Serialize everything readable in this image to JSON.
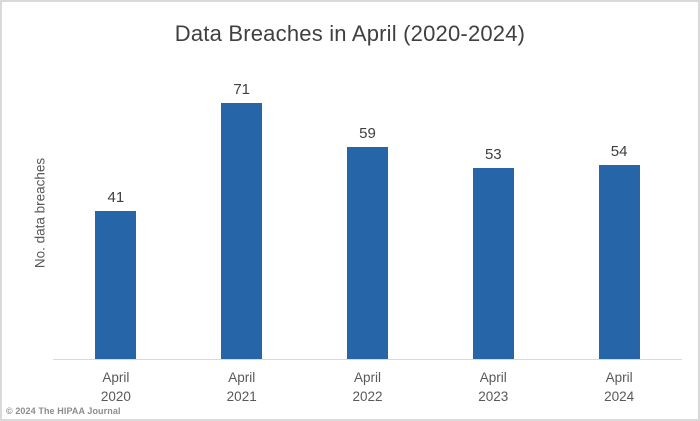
{
  "chart_data": {
    "type": "bar",
    "title": "Data Breaches in April (2020-2024)",
    "xlabel": "",
    "ylabel": "No. data breaches",
    "categories": [
      "April\n2020",
      "April\n2021",
      "April\n2022",
      "April\n2023",
      "April\n2024"
    ],
    "values": [
      41,
      71,
      59,
      53,
      54
    ],
    "ylim": [
      0,
      80
    ],
    "grid": false,
    "legend": "none",
    "y_axis_ticks_visible": false,
    "data_labels_visible": true
  },
  "colors": {
    "bar_fill": "#2565A8",
    "axis_line": "#D9D9D9",
    "frame_border": "#D9D9D9",
    "title_text": "#404040",
    "value_label_text": "#404040",
    "tick_text": "#595959",
    "copyright_text": "#8C8C8C"
  },
  "footer": {
    "copyright": "© 2024 The HIPAA Journal"
  }
}
